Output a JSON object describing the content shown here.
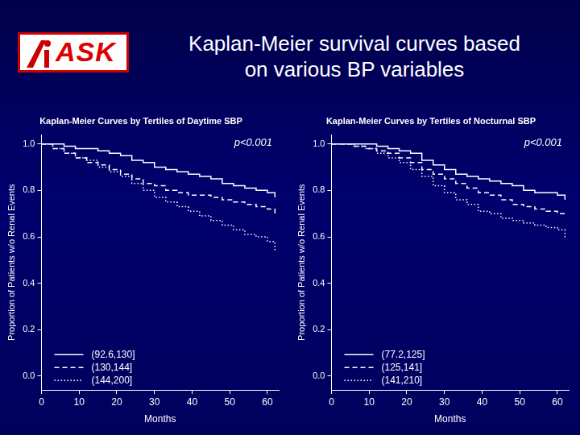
{
  "slide": {
    "logo": "ASK",
    "title": [
      "Kaplan-Meier survival curves based",
      "on various BP variables"
    ]
  },
  "chart_data": [
    {
      "type": "line",
      "title": "Kaplan-Meier Curves by Tertiles of Daytime SBP",
      "xlabel": "Months",
      "ylabel": "Proportion of Patients w/o Renal Events",
      "annotation": "p<0.001",
      "legend": "lower left",
      "grid": false,
      "xlim": [
        0,
        63
      ],
      "ylim": [
        -0.06,
        1.04
      ],
      "xticks": [
        0,
        10,
        20,
        30,
        40,
        50,
        60
      ],
      "yticks": [
        {
          "value": 0,
          "label": "0.0"
        },
        0.2,
        0.4,
        0.6,
        0.8,
        {
          "value": 1,
          "label": "1.0"
        }
      ],
      "x": [
        0,
        3,
        6,
        9,
        12,
        15,
        18,
        21,
        24,
        27,
        30,
        33,
        36,
        39,
        42,
        45,
        48,
        51,
        54,
        57,
        60,
        62
      ],
      "series": [
        {
          "name": "(92.6,130]",
          "color": "#ffffff",
          "line_style": "solid",
          "values": [
            1.0,
            1.0,
            0.99,
            0.98,
            0.98,
            0.97,
            0.96,
            0.95,
            0.93,
            0.92,
            0.9,
            0.89,
            0.88,
            0.87,
            0.86,
            0.85,
            0.83,
            0.82,
            0.81,
            0.8,
            0.79,
            0.77
          ]
        },
        {
          "name": "(130,144]",
          "color": "#ffffff",
          "line_style": "dashed",
          "values": [
            1.0,
            0.98,
            0.96,
            0.94,
            0.92,
            0.91,
            0.89,
            0.87,
            0.85,
            0.83,
            0.82,
            0.8,
            0.79,
            0.78,
            0.78,
            0.77,
            0.76,
            0.75,
            0.74,
            0.73,
            0.72,
            0.7
          ]
        },
        {
          "name": "(144,200]",
          "color": "#ffffff",
          "line_style": "dotted",
          "values": [
            1.0,
            0.98,
            0.96,
            0.94,
            0.93,
            0.9,
            0.88,
            0.86,
            0.83,
            0.8,
            0.77,
            0.75,
            0.73,
            0.71,
            0.69,
            0.67,
            0.65,
            0.63,
            0.61,
            0.6,
            0.58,
            0.54
          ]
        }
      ]
    },
    {
      "type": "line",
      "title": "Kaplan-Meier Curves by Tertiles of Nocturnal SBP",
      "xlabel": "Months",
      "ylabel": "Proportion of Patients w/o Renal Events",
      "annotation": "p<0.001",
      "legend": "lower left",
      "grid": false,
      "xlim": [
        0,
        63
      ],
      "ylim": [
        -0.06,
        1.04
      ],
      "xticks": [
        0,
        10,
        20,
        30,
        40,
        50,
        60
      ],
      "yticks": [
        {
          "value": 0,
          "label": "0.0"
        },
        0.2,
        0.4,
        0.6,
        0.8,
        {
          "value": 1,
          "label": "1.0"
        }
      ],
      "x": [
        0,
        3,
        6,
        9,
        12,
        15,
        18,
        21,
        24,
        27,
        30,
        33,
        36,
        39,
        42,
        45,
        48,
        51,
        54,
        57,
        60,
        62
      ],
      "series": [
        {
          "name": "(77.2,125]",
          "color": "#ffffff",
          "line_style": "solid",
          "values": [
            1.0,
            1.0,
            1.0,
            1.0,
            0.99,
            0.98,
            0.97,
            0.96,
            0.93,
            0.91,
            0.89,
            0.87,
            0.86,
            0.85,
            0.84,
            0.83,
            0.82,
            0.8,
            0.79,
            0.79,
            0.78,
            0.76
          ]
        },
        {
          "name": "(125,141]",
          "color": "#ffffff",
          "line_style": "dashed",
          "values": [
            1.0,
            1.0,
            0.99,
            0.98,
            0.97,
            0.96,
            0.94,
            0.92,
            0.89,
            0.87,
            0.85,
            0.83,
            0.81,
            0.79,
            0.78,
            0.76,
            0.74,
            0.73,
            0.72,
            0.71,
            0.7,
            0.69
          ]
        },
        {
          "name": "(141,210]",
          "color": "#ffffff",
          "line_style": "dotted",
          "values": [
            1.0,
            1.0,
            0.99,
            0.98,
            0.96,
            0.94,
            0.92,
            0.89,
            0.86,
            0.82,
            0.79,
            0.76,
            0.74,
            0.71,
            0.7,
            0.68,
            0.67,
            0.66,
            0.65,
            0.64,
            0.63,
            0.59
          ]
        }
      ]
    }
  ]
}
